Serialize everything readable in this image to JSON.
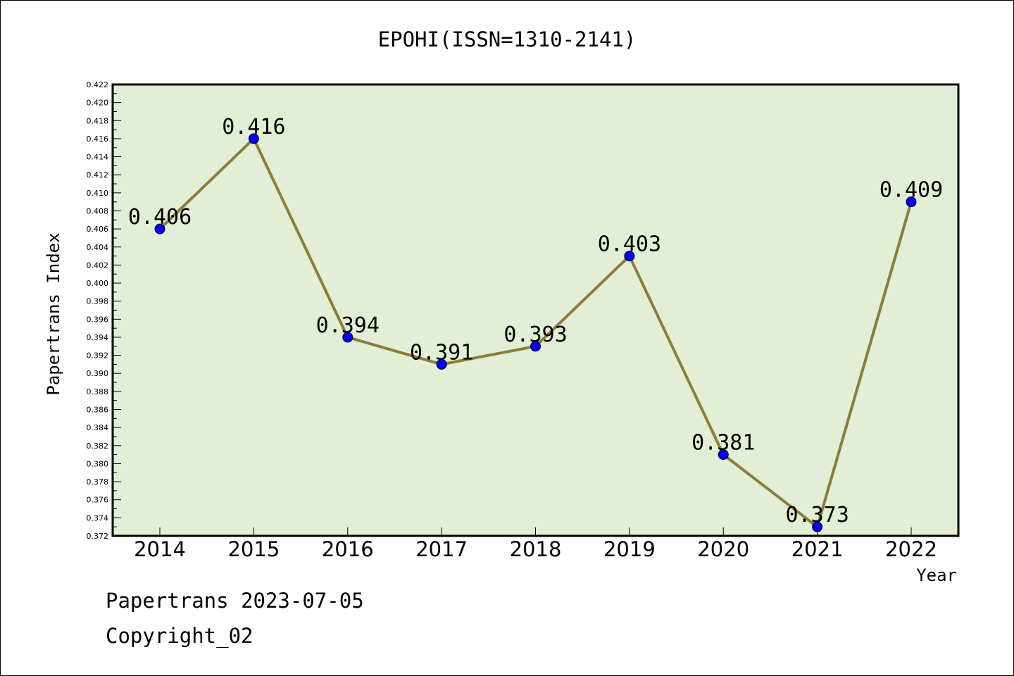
{
  "chart_data": {
    "type": "line",
    "title": "EPOHI(ISSN=1310-2141)",
    "xlabel": "Year",
    "ylabel": "Papertrans Index",
    "categories": [
      "2014",
      "2015",
      "2016",
      "2017",
      "2018",
      "2019",
      "2020",
      "2021",
      "2022"
    ],
    "values": [
      0.406,
      0.416,
      0.394,
      0.391,
      0.393,
      0.403,
      0.381,
      0.373,
      0.409
    ],
    "data_labels": [
      "0.406",
      "0.416",
      "0.394",
      "0.391",
      "0.393",
      "0.403",
      "0.381",
      "0.373",
      "0.409"
    ],
    "ylim": [
      0.372,
      0.422
    ],
    "y_major_step": 0.002,
    "grid": false,
    "colors": {
      "plot_bg": "#e2efd6",
      "line": "#8b7d3a",
      "marker": "#0000ff"
    }
  },
  "footer": {
    "line1": "Papertrans 2023-07-05",
    "line2": "Copyright_02"
  }
}
